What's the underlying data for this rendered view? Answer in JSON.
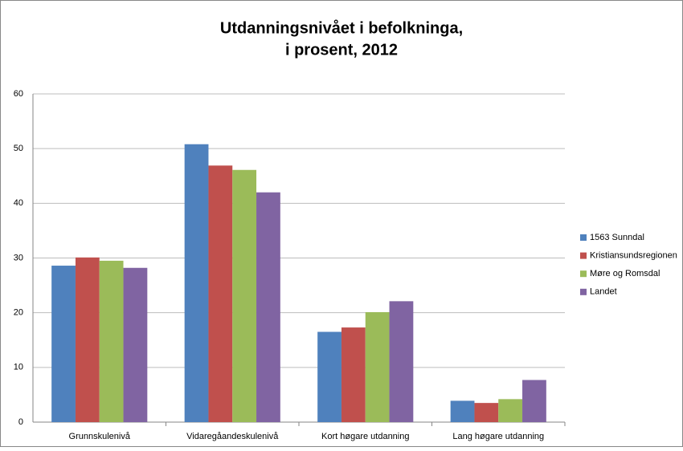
{
  "chart_data": {
    "type": "bar",
    "title": [
      "Utdanningsnivået i befolkninga,",
      "i prosent, 2012"
    ],
    "categories": [
      "Grunnskulenivå",
      "Vidaregåandeskulenivå",
      "Kort høgare utdanning",
      "Lang høgare utdanning"
    ],
    "series": [
      {
        "name": "1563 Sunndal",
        "color": "#4f81bd",
        "values": [
          28.6,
          50.8,
          16.5,
          3.9
        ]
      },
      {
        "name": "Kristiansundsregionen",
        "color": "#c0504d",
        "values": [
          30.1,
          46.9,
          17.3,
          3.5
        ]
      },
      {
        "name": "Møre og Romsdal",
        "color": "#9bbb59",
        "values": [
          29.5,
          46.1,
          20.1,
          4.2
        ]
      },
      {
        "name": "Landet",
        "color": "#8064a2",
        "values": [
          28.2,
          42.0,
          22.1,
          7.7
        ]
      }
    ],
    "ylim": [
      0,
      60
    ],
    "yticks": [
      0,
      10,
      20,
      30,
      40,
      50,
      60
    ],
    "grid": true,
    "legend": "right"
  }
}
